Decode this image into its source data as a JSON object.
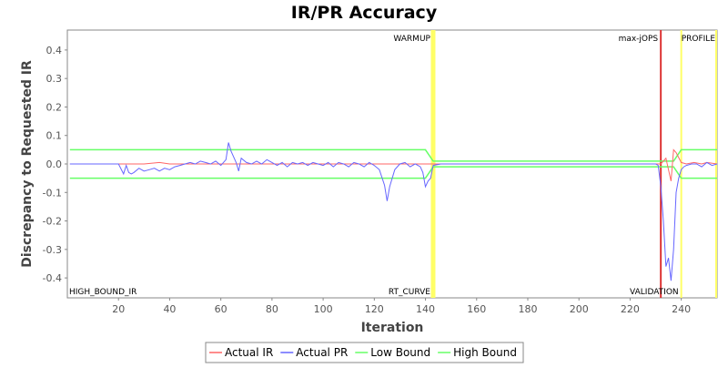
{
  "chart_data": {
    "type": "line",
    "title": "IR/PR Accuracy",
    "xlabel": "Iteration",
    "ylabel": "Discrepancy to Requested IR",
    "xlim": [
      0,
      254
    ],
    "ylim": [
      -0.47,
      0.47
    ],
    "x_ticks": [
      20,
      40,
      60,
      80,
      100,
      120,
      140,
      160,
      180,
      200,
      220,
      240
    ],
    "y_ticks": [
      -0.4,
      -0.3,
      -0.2,
      -0.1,
      0.0,
      0.1,
      0.2,
      0.3,
      0.4
    ],
    "y_tick_labels": [
      "-0.4",
      "-0.3",
      "-0.2",
      "-0.1",
      "0.0",
      "0.1",
      "0.2",
      "0.3",
      "0.4"
    ],
    "grid": false,
    "legend_position": "bottom",
    "colors": {
      "actual_ir": "#ff6666",
      "actual_pr": "#6666ff",
      "bounds": "#66ff66",
      "phase_band": "#ffff66",
      "max_jops_line": "#dd3333"
    },
    "phase_markers": [
      {
        "label": "HIGH_BOUND_IR",
        "x": 0,
        "label_position": "bottom"
      },
      {
        "label": "WARMUP",
        "x": 143,
        "label_position": "top"
      },
      {
        "label": "RT_CURVE",
        "x": 143,
        "label_position": "bottom"
      },
      {
        "label": "max-jOPS",
        "x": 232,
        "label_position": "top"
      },
      {
        "label": "VALIDATION",
        "x": 240,
        "label_position": "bottom"
      },
      {
        "label": "PROFILE",
        "x": 254,
        "label_position": "top"
      }
    ],
    "series": [
      {
        "name": "Actual IR",
        "x": [
          1,
          20,
          30,
          36,
          40,
          60,
          80,
          100,
          120,
          140,
          145,
          200,
          230,
          232,
          234,
          236,
          237,
          238,
          240,
          242,
          245,
          248,
          250,
          254
        ],
        "y": [
          0,
          0,
          0,
          0.005,
          0,
          0,
          0,
          0,
          0,
          0,
          0,
          0,
          0,
          0,
          0.02,
          -0.06,
          0.05,
          0.04,
          0.005,
          0,
          0.005,
          0,
          0.005,
          0
        ]
      },
      {
        "name": "Actual PR",
        "x": [
          1,
          20,
          22,
          23,
          24,
          25,
          26,
          28,
          30,
          32,
          34,
          36,
          38,
          40,
          42,
          44,
          46,
          48,
          50,
          52,
          54,
          56,
          58,
          60,
          62,
          63,
          64,
          66,
          67,
          68,
          70,
          72,
          74,
          76,
          78,
          80,
          82,
          84,
          86,
          88,
          90,
          92,
          94,
          96,
          98,
          100,
          102,
          104,
          106,
          108,
          110,
          112,
          114,
          116,
          118,
          120,
          122,
          124,
          125,
          126,
          128,
          130,
          132,
          134,
          136,
          138,
          139,
          140,
          141,
          142,
          143,
          146,
          150,
          160,
          170,
          180,
          190,
          200,
          210,
          220,
          228,
          230,
          231,
          232,
          233,
          234,
          235,
          236,
          237,
          238,
          239,
          240,
          241,
          242,
          244,
          246,
          248,
          250,
          252,
          254
        ],
        "y": [
          0,
          0,
          -0.035,
          -0.005,
          -0.03,
          -0.035,
          -0.03,
          -0.015,
          -0.025,
          -0.02,
          -0.015,
          -0.025,
          -0.015,
          -0.02,
          -0.01,
          -0.005,
          0.0,
          0.005,
          0.0,
          0.01,
          0.005,
          0.0,
          0.01,
          -0.005,
          0.015,
          0.075,
          0.045,
          0.005,
          -0.025,
          0.02,
          0.005,
          0.0,
          0.01,
          0.0,
          0.015,
          0.005,
          -0.005,
          0.005,
          -0.01,
          0.005,
          0.0,
          0.005,
          -0.005,
          0.005,
          0.0,
          -0.005,
          0.005,
          -0.01,
          0.005,
          0.0,
          -0.01,
          0.005,
          0.0,
          -0.01,
          0.005,
          -0.005,
          -0.02,
          -0.075,
          -0.13,
          -0.08,
          -0.02,
          0.0,
          0.005,
          -0.01,
          0.0,
          -0.01,
          -0.03,
          -0.08,
          -0.06,
          -0.05,
          -0.005,
          0.0,
          0.0,
          0.0,
          0.0,
          0.0,
          0.0,
          0.0,
          0.0,
          0.0,
          0.0,
          0.0,
          -0.005,
          -0.08,
          -0.2,
          -0.36,
          -0.33,
          -0.41,
          -0.3,
          -0.1,
          -0.05,
          -0.02,
          -0.01,
          -0.005,
          0.0,
          0.0,
          -0.01,
          0.005,
          -0.005,
          0.0
        ]
      },
      {
        "name": "Low Bound",
        "x": [
          1,
          140,
          143,
          232,
          237,
          240,
          254
        ],
        "y": [
          -0.05,
          -0.05,
          -0.01,
          -0.01,
          -0.01,
          -0.05,
          -0.05
        ]
      },
      {
        "name": "High Bound",
        "x": [
          1,
          140,
          143,
          232,
          237,
          240,
          254
        ],
        "y": [
          0.05,
          0.05,
          0.01,
          0.01,
          0.01,
          0.05,
          0.05
        ]
      }
    ]
  }
}
